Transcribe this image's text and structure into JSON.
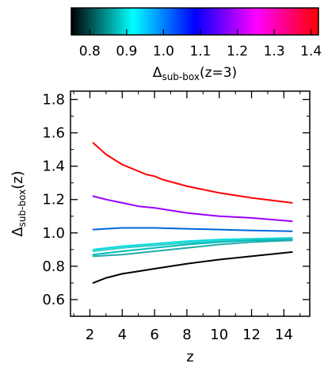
{
  "chart_data": [
    {
      "type": "colorbar",
      "label": {
        "base": "Δ",
        "sub": "sub-box",
        "tail": "(z=3)"
      },
      "range": [
        0.75,
        1.42
      ],
      "ticks": [
        0.8,
        0.9,
        1.0,
        1.1,
        1.2,
        1.3,
        1.4
      ],
      "tick_labels": [
        "0.8",
        "0.9",
        "1.0",
        "1.1",
        "1.2",
        "1.3",
        "1.4"
      ],
      "gradient": [
        "#000000",
        "#00ffff",
        "#0000ff",
        "#ff00ff",
        "#ff0000"
      ]
    },
    {
      "type": "line",
      "xlabel": "z",
      "ylabel": {
        "base": "Δ",
        "sub": "sub-box",
        "tail": "(z)"
      },
      "xlim": [
        0.8,
        15.6
      ],
      "ylim": [
        0.5,
        1.85
      ],
      "xticks": [
        2,
        4,
        6,
        8,
        10,
        12,
        14
      ],
      "xtick_labels": [
        "2",
        "4",
        "6",
        "8",
        "10",
        "12",
        "14"
      ],
      "yticks": [
        0.6,
        0.8,
        1.0,
        1.2,
        1.4,
        1.6,
        1.8
      ],
      "ytick_labels": [
        "0.6",
        "0.8",
        "1.0",
        "1.2",
        "1.4",
        "1.6",
        "1.8"
      ],
      "grid": false,
      "series": [
        {
          "color": "#ff0000",
          "x": [
            2.2,
            3,
            4,
            5,
            5.5,
            6,
            6.5,
            8,
            10,
            12,
            14.5
          ],
          "values": [
            1.54,
            1.47,
            1.41,
            1.37,
            1.35,
            1.34,
            1.32,
            1.28,
            1.24,
            1.21,
            1.18
          ]
        },
        {
          "color": "#9900ff",
          "x": [
            2.2,
            3,
            4,
            5,
            6,
            8,
            10,
            12,
            14.5
          ],
          "values": [
            1.22,
            1.2,
            1.18,
            1.16,
            1.15,
            1.12,
            1.1,
            1.09,
            1.07
          ]
        },
        {
          "color": "#0066dd",
          "x": [
            2.2,
            3,
            4,
            5,
            6,
            8,
            10,
            12,
            14.5
          ],
          "values": [
            1.02,
            1.025,
            1.03,
            1.03,
            1.03,
            1.025,
            1.02,
            1.015,
            1.01
          ]
        },
        {
          "color": "#00dddd",
          "x": [
            2.2,
            4,
            6,
            8,
            10,
            12,
            14.5
          ],
          "values": [
            0.9,
            0.92,
            0.935,
            0.95,
            0.96,
            0.965,
            0.97
          ]
        },
        {
          "color": "#33cccc",
          "x": [
            2.2,
            4,
            6,
            8,
            10,
            12,
            14.5
          ],
          "values": [
            0.89,
            0.91,
            0.925,
            0.94,
            0.95,
            0.96,
            0.965
          ]
        },
        {
          "color": "#00bbbb",
          "x": [
            2.2,
            4,
            6,
            8,
            10,
            12,
            14.5
          ],
          "values": [
            0.87,
            0.89,
            0.91,
            0.93,
            0.945,
            0.955,
            0.96
          ]
        },
        {
          "color": "#22aaaa",
          "x": [
            2.2,
            4,
            6,
            8,
            10,
            12,
            14.5
          ],
          "values": [
            0.86,
            0.87,
            0.89,
            0.91,
            0.93,
            0.945,
            0.955
          ]
        },
        {
          "color": "#000000",
          "x": [
            2.2,
            3,
            4,
            5,
            6,
            8,
            10,
            12,
            14.5
          ],
          "values": [
            0.7,
            0.73,
            0.755,
            0.77,
            0.785,
            0.815,
            0.84,
            0.86,
            0.885
          ]
        }
      ]
    }
  ]
}
